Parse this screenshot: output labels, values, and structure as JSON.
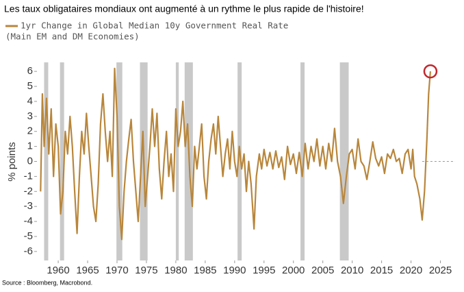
{
  "chart_data": {
    "type": "line",
    "title": "Les taux obligataires mondiaux ont augmenté à un rythme le plus rapide de l'histoire!",
    "legend_note": "(Main EM and DM Economies)",
    "ylabel": "% points",
    "source": "Source : Bloomberg, Macrobond.",
    "xlim": [
      1956.5,
      2027.5
    ],
    "xticks": [
      1960,
      1965,
      1970,
      1975,
      1980,
      1985,
      1990,
      1995,
      2000,
      2005,
      2010,
      2015,
      2020,
      2025
    ],
    "ylim": [
      -6.6,
      6.6
    ],
    "yticks": [
      -6,
      -5,
      -4,
      -3,
      -2,
      -1,
      0,
      1,
      2,
      3,
      4,
      5,
      6
    ],
    "reference_line": 0,
    "shaded_periods": [
      [
        1957.6,
        1958.3
      ],
      [
        1960.3,
        1961.0
      ],
      [
        1969.9,
        1970.9
      ],
      [
        1973.9,
        1975.2
      ],
      [
        1980.0,
        1980.5
      ],
      [
        1981.5,
        1982.9
      ],
      [
        1990.5,
        1991.2
      ],
      [
        2001.2,
        2001.9
      ],
      [
        2007.9,
        2009.4
      ]
    ],
    "x": [
      1957.0,
      1957.3,
      1957.6,
      1958.0,
      1958.4,
      1958.8,
      1959.2,
      1959.6,
      1960.0,
      1960.4,
      1960.8,
      1961.2,
      1961.6,
      1962.0,
      1962.4,
      1962.8,
      1963.2,
      1963.6,
      1964.0,
      1964.4,
      1964.8,
      1965.2,
      1965.6,
      1966.0,
      1966.4,
      1966.8,
      1967.2,
      1967.6,
      1968.0,
      1968.4,
      1968.8,
      1969.2,
      1969.6,
      1970.0,
      1970.4,
      1970.8,
      1971.2,
      1971.6,
      1972.0,
      1972.4,
      1972.8,
      1973.2,
      1973.6,
      1974.0,
      1974.4,
      1974.8,
      1975.2,
      1975.6,
      1976.0,
      1976.4,
      1976.8,
      1977.2,
      1977.6,
      1978.0,
      1978.4,
      1978.8,
      1979.2,
      1979.6,
      1980.0,
      1980.4,
      1980.8,
      1981.2,
      1981.6,
      1982.0,
      1982.4,
      1982.8,
      1983.2,
      1983.6,
      1984.0,
      1984.4,
      1984.8,
      1985.2,
      1985.6,
      1986.0,
      1986.4,
      1986.8,
      1987.2,
      1987.6,
      1988.0,
      1988.4,
      1988.8,
      1989.2,
      1989.6,
      1990.0,
      1990.4,
      1990.8,
      1991.2,
      1991.6,
      1992.0,
      1992.4,
      1992.8,
      1993.3,
      1993.7,
      1994.2,
      1994.6,
      1995.0,
      1995.5,
      1996.0,
      1996.5,
      1997.0,
      1997.5,
      1998.0,
      1998.5,
      1999.0,
      1999.5,
      2000.0,
      2000.5,
      2001.0,
      2001.5,
      2002.0,
      2002.5,
      2003.0,
      2003.5,
      2004.0,
      2004.5,
      2005.0,
      2005.5,
      2006.0,
      2006.5,
      2007.0,
      2007.5,
      2008.0,
      2008.5,
      2009.0,
      2009.5,
      2010.0,
      2010.5,
      2011.0,
      2011.5,
      2012.0,
      2012.5,
      2013.0,
      2013.5,
      2014.0,
      2014.5,
      2015.0,
      2015.5,
      2016.0,
      2016.5,
      2017.0,
      2017.5,
      2018.0,
      2018.5,
      2019.0,
      2019.5,
      2020.0,
      2020.3,
      2020.6,
      2021.0,
      2021.5,
      2021.9,
      2022.3,
      2022.7,
      2023.0,
      2023.3
    ],
    "series": [
      {
        "name": "1yr Change in Global Median 10y Government Real Rate",
        "color": "#b8863b",
        "values": [
          -2,
          4.5,
          1,
          4.2,
          0.5,
          3.5,
          -1,
          2.5,
          1,
          -3.5,
          -2,
          2,
          0.5,
          3,
          1,
          -2,
          -4.8,
          -1,
          2,
          0.5,
          3.2,
          1,
          -1,
          -3,
          -4,
          -1.5,
          2.5,
          4.5,
          2,
          0,
          2,
          -1,
          6.2,
          3,
          -3,
          -5.2,
          -2,
          0,
          1.5,
          2.8,
          0,
          -2,
          -4,
          -1,
          2,
          -3,
          -1,
          1,
          3.5,
          1,
          3.2,
          -0.5,
          -2.5,
          0,
          2,
          -1,
          0.5,
          -2,
          3.5,
          1,
          2,
          4,
          1,
          2.5,
          -1,
          -3,
          1,
          -0.5,
          1,
          2.5,
          -1,
          -2.5,
          0,
          1.5,
          2.5,
          0.5,
          3,
          1,
          -1,
          0.5,
          1.5,
          -0.5,
          2,
          0,
          -1,
          1,
          -0.5,
          0.5,
          -2,
          0,
          -1.5,
          -4.5,
          -1,
          0.5,
          -0.5,
          0.8,
          -0.3,
          0.6,
          -0.5,
          0.7,
          -0.4,
          0.3,
          -1.2,
          1,
          -0.2,
          0.5,
          -0.8,
          0.6,
          -1,
          1.2,
          -0.5,
          1,
          0,
          1.5,
          -0.3,
          1,
          -0.5,
          1.2,
          0,
          2.2,
          0,
          -1,
          -2.8,
          -1,
          0.5,
          0.8,
          -0.5,
          1.5,
          0,
          -0.3,
          -1.2,
          0,
          1.3,
          0.2,
          -0.3,
          0.3,
          -0.8,
          0.5,
          0.2,
          0.8,
          0,
          0.2,
          -0.8,
          0.5,
          0.8,
          -0.5,
          0.8,
          -1,
          -1.5,
          -2.5,
          -3.9,
          -2,
          1.5,
          4.5,
          6
        ]
      }
    ]
  }
}
